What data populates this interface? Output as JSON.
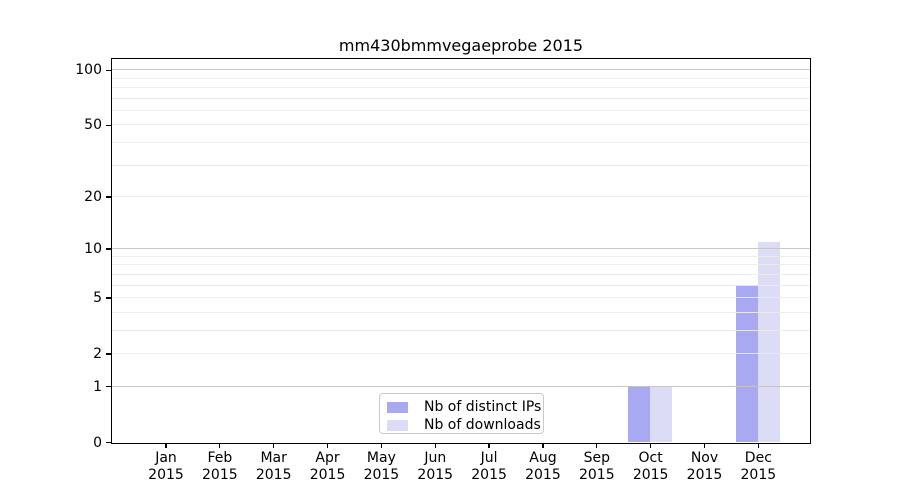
{
  "chart_data": {
    "type": "bar",
    "title": "mm430bmmvegaeprobe 2015",
    "x_year": "2015",
    "categories": [
      "Jan",
      "Feb",
      "Mar",
      "Apr",
      "May",
      "Jun",
      "Jul",
      "Aug",
      "Sep",
      "Oct",
      "Nov",
      "Dec"
    ],
    "series": [
      {
        "key": "distinct-ips",
        "name": "Nb of distinct IPs",
        "color": "#a9a9f1",
        "values": [
          0,
          0,
          0,
          0,
          0,
          0,
          0,
          0,
          0,
          1,
          0,
          6
        ]
      },
      {
        "key": "downloads",
        "name": "Nb of downloads",
        "color": "#dcdcf7",
        "values": [
          0,
          0,
          0,
          0,
          0,
          0,
          0,
          0,
          0,
          1,
          0,
          11
        ]
      }
    ],
    "yscale": "log10(1+value)",
    "ylim": [
      0,
      116
    ],
    "yticks": [
      {
        "value": 100,
        "label": "100"
      },
      {
        "value": 50,
        "label": "50"
      },
      {
        "value": 20,
        "label": "20"
      },
      {
        "value": 10,
        "label": "10"
      },
      {
        "value": 5,
        "label": "5"
      },
      {
        "value": 2,
        "label": "2"
      },
      {
        "value": 1,
        "label": "1"
      },
      {
        "value": 0,
        "label": "0"
      }
    ],
    "grid": {
      "major_values": [
        1,
        10,
        100
      ],
      "minor_values": [
        2,
        3,
        4,
        5,
        6,
        7,
        8,
        9,
        20,
        30,
        40,
        50,
        60,
        70,
        80,
        90
      ],
      "major_color": "#c3c3c3",
      "minor_color": "#ebebeb"
    },
    "legend_position": "lower center inside",
    "axis_color": "#000000",
    "background_color": "#ffffff"
  }
}
